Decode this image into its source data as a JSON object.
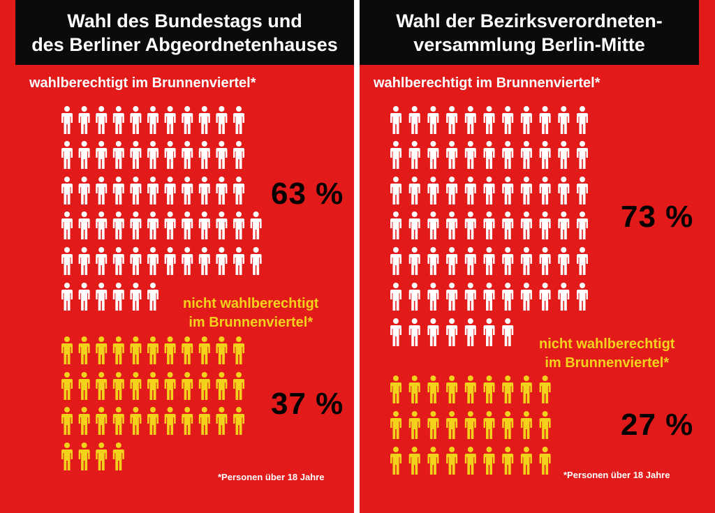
{
  "panels": [
    {
      "title_line1": "Wahl des Bundestags und",
      "title_line2": "des Berliner Abgeordnetenhauses",
      "eligible_label": "wahlberechtigt im Brunnenviertel*",
      "eligible_pct": "63 %",
      "eligible_share": 0.63,
      "eligible_icons": 63,
      "ineligible_label_line1": "nicht wahlberechtigt",
      "ineligible_label_line2": "im Brunnenviertel*",
      "ineligible_pct": "37 %",
      "ineligible_share": 0.37,
      "ineligible_icons": 37,
      "footnote": "*Personen über 18 Jahre"
    },
    {
      "title_line1": "Wahl der Bezirksverordneten-",
      "title_line2": "versammlung Berlin-Mitte",
      "eligible_label": "wahlberechtigt im Brunnenviertel*",
      "eligible_pct": "73 %",
      "eligible_share": 0.73,
      "eligible_icons": 73,
      "ineligible_label_line1": "nicht wahlberechtigt",
      "ineligible_label_line2": "im Brunnenviertel*",
      "ineligible_pct": "27 %",
      "ineligible_share": 0.27,
      "ineligible_icons": 27,
      "footnote": "*Personen über 18 Jahre"
    }
  ],
  "icons": {
    "person": "person-icon"
  },
  "colors": {
    "background": "#e21a1a",
    "eligible": "#ffffff",
    "ineligible": "#f3d21c",
    "titlebar": "#0b0b0b",
    "percent": "#000000"
  }
}
